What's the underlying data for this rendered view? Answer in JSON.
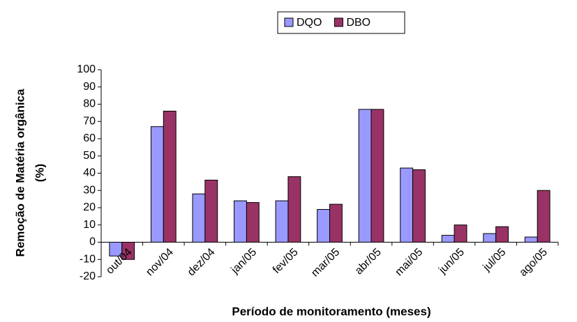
{
  "chart_data": {
    "type": "bar",
    "x_label": "Período de monitoramento (meses)",
    "y_label": [
      "Remoção de Matéria orgânica",
      "(%)"
    ],
    "categories": [
      "out/04",
      "nov/04",
      "dez/04",
      "jan/05",
      "fev/05",
      "mar/05",
      "abr/05",
      "mai/05",
      "jun/05",
      "jul/05",
      "ago/05"
    ],
    "series": [
      {
        "name": "DQO",
        "color": "#9999ff",
        "values": [
          -8,
          67,
          28,
          24,
          24,
          19,
          77,
          43,
          4,
          5,
          3
        ]
      },
      {
        "name": "DBO",
        "color": "#993366",
        "values": [
          -10,
          76,
          36,
          23,
          38,
          22,
          77,
          42,
          10,
          9,
          30
        ]
      }
    ],
    "ylim": [
      -20,
      100
    ],
    "yticks": [
      -20,
      -10,
      0,
      10,
      20,
      30,
      40,
      50,
      60,
      70,
      80,
      90,
      100
    ],
    "grid": false,
    "legend": "top"
  }
}
